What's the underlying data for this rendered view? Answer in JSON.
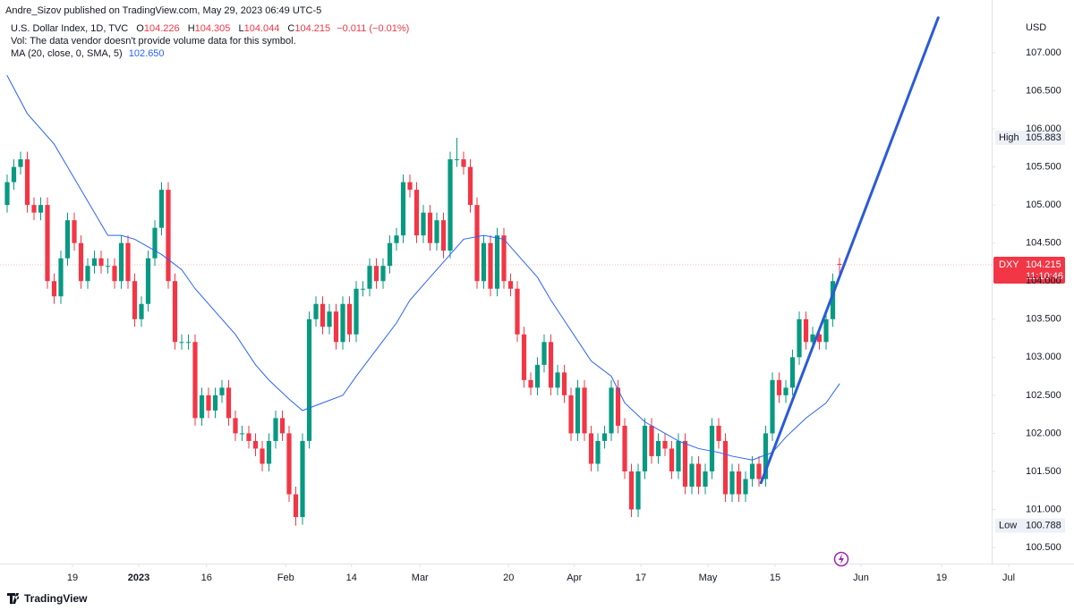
{
  "header": {
    "publisher": "Andre_Sizov published on TradingView.com, May 29, 2023 06:49 UTC-5",
    "brand": "TradingView"
  },
  "chart_data": {
    "type": "candlestick",
    "title": "U.S. Dollar Index, 1D, TVC",
    "legend_keys": [
      "O",
      "H",
      "L",
      "C"
    ],
    "change": "−0.011 (−0.01%)",
    "volume_note": "Vol: The data vendor doesn't provide volume data for this symbol.",
    "ma_name": "MA (20, close, 0, SMA, 5)",
    "ma_value_label": "102.650",
    "currency": "USD",
    "high_tag": "High",
    "low_tag": "Low",
    "symbol": "DXY",
    "countdown": "11:10:46",
    "up_color": "#089981",
    "down_color": "#f23645",
    "xlim": [
      -1.067,
      150.93
    ],
    "ylim": [
      100.289,
      107.693
    ],
    "xticks": [
      {
        "value": 9.73,
        "label": "19"
      },
      {
        "value": 19.6,
        "label": "2023"
      },
      {
        "value": 29.7,
        "label": "16"
      },
      {
        "value": 41.5,
        "label": "Feb"
      },
      {
        "value": 51.3,
        "label": "14"
      },
      {
        "value": 61.5,
        "label": "Mar"
      },
      {
        "value": 74.7,
        "label": "20"
      },
      {
        "value": 84.5,
        "label": "Apr"
      },
      {
        "value": 94.4,
        "label": "17"
      },
      {
        "value": 104.4,
        "label": "May"
      },
      {
        "value": 114.4,
        "label": "15"
      },
      {
        "value": 127.2,
        "label": "Jun"
      },
      {
        "value": 139.2,
        "label": "19"
      },
      {
        "value": 149.2,
        "label": "Jul"
      }
    ],
    "yticks": [
      {
        "value": 100.5,
        "label": "100.500"
      },
      {
        "value": 101,
        "label": "101.000"
      },
      {
        "value": 101.5,
        "label": "101.500"
      },
      {
        "value": 102,
        "label": "102.000"
      },
      {
        "value": 102.5,
        "label": "102.500"
      },
      {
        "value": 103,
        "label": "103.000"
      },
      {
        "value": 103.5,
        "label": "103.500"
      },
      {
        "value": 104,
        "label": "104.000"
      },
      {
        "value": 104.5,
        "label": "104.500"
      },
      {
        "value": 105,
        "label": "105.000"
      },
      {
        "value": 105.5,
        "label": "105.500"
      },
      {
        "value": 106,
        "label": "106.000"
      },
      {
        "value": 106.5,
        "label": "106.500"
      },
      {
        "value": 107,
        "label": "107.000"
      }
    ],
    "open": [
      105.0,
      105.3,
      105.5,
      105.6,
      105.0,
      104.9,
      105.0,
      104.0,
      103.8,
      104.3,
      104.8,
      104.5,
      104.0,
      104.2,
      104.3,
      104.2,
      104.2,
      104.0,
      104.5,
      104.0,
      103.5,
      103.7,
      104.3,
      104.7,
      105.2,
      104.0,
      103.2,
      103.2,
      103.2,
      102.2,
      102.5,
      102.3,
      102.5,
      102.6,
      102.2,
      102.0,
      102.0,
      101.9,
      101.8,
      101.6,
      101.9,
      102.2,
      102.0,
      101.2,
      100.9,
      101.9,
      103.5,
      103.7,
      103.4,
      103.6,
      103.2,
      103.7,
      103.3,
      103.9,
      103.9,
      104.2,
      104.0,
      104.2,
      104.5,
      104.6,
      105.3,
      105.2,
      104.6,
      104.9,
      104.5,
      104.8,
      104.4,
      105.6,
      105.6,
      105.5,
      105.0,
      104.0,
      104.5,
      103.9,
      104.6,
      104.0,
      103.9,
      103.3,
      102.7,
      102.6,
      102.9,
      103.2,
      102.6,
      102.8,
      102.5,
      102.0,
      102.6,
      102.0,
      101.6,
      101.9,
      102.0,
      102.6,
      102.1,
      101.5,
      101.0,
      101.5,
      102.1,
      101.7,
      101.9,
      101.8,
      101.5,
      101.9,
      101.3,
      101.6,
      101.3,
      101.5,
      102.1,
      101.9,
      101.2,
      101.5,
      101.2,
      101.4,
      101.6,
      101.4,
      102.0,
      102.7,
      102.5,
      102.6,
      103.0,
      103.5,
      103.2,
      103.3,
      103.2,
      103.5,
      104.226
    ],
    "high": [
      105.4,
      105.6,
      105.7,
      105.7,
      105.1,
      105.1,
      105.1,
      104.1,
      104.4,
      104.9,
      104.9,
      104.6,
      104.3,
      104.4,
      104.4,
      104.3,
      104.3,
      104.6,
      104.6,
      104.1,
      103.8,
      104.4,
      104.8,
      105.3,
      105.3,
      104.1,
      103.3,
      103.3,
      103.3,
      102.6,
      102.6,
      102.6,
      102.7,
      102.7,
      102.3,
      102.1,
      102.1,
      102.0,
      101.9,
      102.0,
      102.3,
      102.3,
      102.1,
      101.3,
      102.0,
      103.6,
      103.8,
      103.8,
      103.7,
      103.7,
      103.8,
      103.8,
      104.0,
      104.0,
      104.3,
      104.3,
      104.3,
      104.6,
      104.7,
      105.4,
      105.4,
      105.3,
      105.0,
      105.0,
      104.9,
      104.9,
      105.7,
      105.883,
      105.7,
      105.6,
      105.1,
      104.6,
      104.6,
      104.7,
      104.7,
      104.1,
      104.0,
      103.4,
      102.8,
      103.0,
      103.3,
      103.3,
      102.9,
      102.9,
      102.6,
      102.7,
      102.7,
      102.1,
      102.0,
      102.1,
      102.7,
      102.7,
      102.2,
      101.6,
      101.6,
      102.2,
      102.2,
      102.0,
      102.0,
      101.9,
      102.0,
      102.0,
      101.7,
      101.7,
      101.6,
      102.2,
      102.2,
      102.0,
      101.6,
      101.6,
      101.5,
      101.7,
      101.7,
      102.1,
      102.8,
      102.8,
      102.7,
      103.1,
      103.6,
      103.6,
      103.4,
      103.4,
      103.6,
      104.1,
      104.305
    ],
    "low": [
      104.9,
      105.2,
      105.4,
      104.9,
      104.8,
      104.8,
      103.9,
      103.7,
      103.7,
      104.2,
      104.4,
      103.9,
      103.9,
      104.1,
      104.1,
      104.1,
      103.9,
      103.9,
      103.9,
      103.4,
      103.4,
      103.6,
      104.2,
      104.6,
      103.9,
      103.1,
      103.1,
      103.1,
      102.1,
      102.1,
      102.2,
      102.2,
      102.4,
      102.1,
      101.9,
      101.9,
      101.8,
      101.7,
      101.5,
      101.5,
      101.8,
      101.9,
      101.1,
      100.788,
      100.8,
      101.8,
      103.4,
      103.3,
      103.3,
      103.1,
      103.1,
      103.2,
      103.2,
      103.8,
      103.8,
      103.9,
      103.9,
      104.1,
      104.4,
      104.5,
      105.1,
      104.5,
      104.5,
      104.4,
      104.4,
      104.3,
      104.3,
      105.5,
      105.4,
      104.9,
      103.9,
      103.9,
      103.8,
      103.8,
      103.9,
      103.8,
      103.2,
      102.6,
      102.5,
      102.5,
      102.8,
      102.5,
      102.5,
      102.4,
      101.9,
      101.9,
      101.9,
      101.5,
      101.5,
      101.8,
      101.9,
      102.0,
      101.4,
      100.9,
      100.9,
      101.4,
      101.6,
      101.6,
      101.7,
      101.4,
      101.4,
      101.2,
      101.2,
      101.2,
      101.2,
      101.4,
      101.8,
      101.1,
      101.1,
      101.1,
      101.1,
      101.3,
      101.3,
      101.3,
      101.9,
      102.4,
      102.4,
      102.5,
      102.9,
      103.1,
      103.1,
      103.1,
      103.1,
      103.4,
      104.044
    ],
    "close": [
      105.3,
      105.5,
      105.6,
      105.0,
      104.9,
      105.0,
      104.0,
      103.8,
      104.3,
      104.8,
      104.5,
      104.0,
      104.2,
      104.3,
      104.2,
      104.2,
      104.0,
      104.5,
      104.0,
      103.5,
      103.7,
      104.3,
      104.7,
      105.2,
      104.0,
      103.2,
      103.2,
      103.2,
      102.2,
      102.5,
      102.3,
      102.5,
      102.6,
      102.2,
      102.0,
      102.0,
      101.9,
      101.8,
      101.6,
      101.9,
      102.2,
      102.0,
      101.2,
      100.9,
      101.9,
      103.5,
      103.7,
      103.4,
      103.6,
      103.2,
      103.7,
      103.3,
      103.9,
      103.9,
      104.2,
      104.0,
      104.2,
      104.5,
      104.6,
      105.3,
      105.2,
      104.6,
      104.9,
      104.5,
      104.8,
      104.4,
      105.6,
      105.6,
      105.5,
      105.0,
      104.0,
      104.5,
      103.9,
      104.6,
      104.0,
      103.9,
      103.3,
      102.7,
      102.6,
      102.9,
      103.2,
      102.6,
      102.8,
      102.5,
      102.0,
      102.6,
      102.0,
      101.6,
      101.9,
      102.0,
      102.6,
      102.1,
      101.5,
      101.0,
      101.5,
      102.1,
      101.7,
      101.9,
      101.8,
      101.5,
      101.9,
      101.3,
      101.6,
      101.3,
      101.5,
      102.1,
      101.9,
      101.2,
      101.5,
      101.2,
      101.4,
      101.6,
      101.4,
      102.0,
      102.7,
      102.5,
      102.6,
      103.0,
      103.5,
      103.2,
      103.3,
      103.2,
      103.5,
      104.0,
      104.215
    ],
    "ma": {
      "color": "#2962ff",
      "x": [
        0,
        3,
        7,
        9,
        11,
        13,
        15,
        17,
        19,
        21,
        23,
        26,
        28,
        31,
        34,
        37,
        39,
        42,
        44,
        47,
        50,
        52,
        55,
        58,
        60,
        63,
        66,
        68,
        71,
        74,
        76,
        79,
        81,
        84,
        87,
        90,
        92,
        95,
        98,
        100,
        103,
        106,
        108,
        111,
        114,
        116,
        119,
        122,
        124
      ],
      "values": [
        106.7,
        106.2,
        105.8,
        105.5,
        105.2,
        104.9,
        104.6,
        104.6,
        104.55,
        104.45,
        104.35,
        104.15,
        103.9,
        103.6,
        103.3,
        102.9,
        102.7,
        102.45,
        102.3,
        102.4,
        102.5,
        102.75,
        103.1,
        103.45,
        103.75,
        104.05,
        104.35,
        104.55,
        104.6,
        104.55,
        104.35,
        104.05,
        103.75,
        103.35,
        102.95,
        102.75,
        102.4,
        102.15,
        102.0,
        101.9,
        101.8,
        101.75,
        101.7,
        101.65,
        101.75,
        101.95,
        102.2,
        102.4,
        102.65
      ]
    },
    "trendline": {
      "color": "#2a5bd7",
      "x": [
        112.3,
        138.7
      ],
      "values": [
        101.35,
        107.46
      ]
    }
  }
}
